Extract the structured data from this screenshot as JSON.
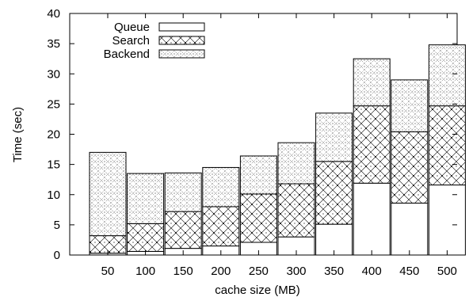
{
  "chart_data": {
    "type": "bar",
    "stacked": true,
    "title": "",
    "xlabel": "cache size (MB)",
    "ylabel": "Time (sec)",
    "categories": [
      "50",
      "100",
      "150",
      "200",
      "250",
      "300",
      "350",
      "400",
      "450",
      "500"
    ],
    "ylim": [
      0,
      40
    ],
    "yticks": [
      0,
      5,
      10,
      15,
      20,
      25,
      30,
      35,
      40
    ],
    "grid": false,
    "legend_position": "top-left",
    "series": [
      {
        "name": "Queue",
        "pattern": "plain",
        "values": [
          0.3,
          0.6,
          1.1,
          1.5,
          2.1,
          3.0,
          5.1,
          11.9,
          8.6,
          11.6
        ]
      },
      {
        "name": "Search",
        "pattern": "cross",
        "values": [
          2.9,
          4.6,
          6.1,
          6.5,
          8.0,
          8.8,
          10.4,
          12.8,
          11.8,
          13.1
        ]
      },
      {
        "name": "Backend",
        "pattern": "dots",
        "values": [
          13.8,
          8.3,
          6.4,
          6.5,
          6.3,
          6.8,
          8.0,
          7.8,
          8.6,
          10.1
        ]
      }
    ]
  }
}
